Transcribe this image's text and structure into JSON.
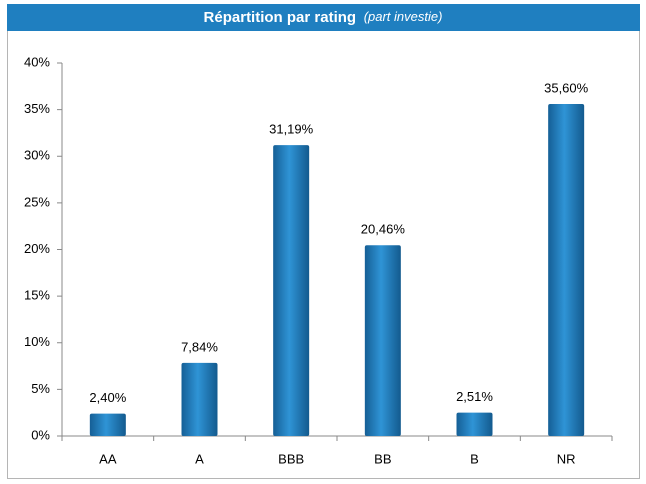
{
  "chart_data": {
    "type": "bar",
    "title": "Répartition par rating",
    "subtitle": "(part investie)",
    "categories": [
      "AA",
      "A",
      "BBB",
      "BB",
      "B",
      "NR"
    ],
    "values": [
      2.4,
      7.84,
      31.19,
      20.46,
      2.51,
      35.6
    ],
    "value_labels": [
      "2,40%",
      "7,84%",
      "31,19%",
      "20,46%",
      "2,51%",
      "35,60%"
    ],
    "color": "#1f7fc0",
    "ylim": [
      0,
      40
    ],
    "yticks": [
      {
        "value": 0,
        "label": "0%"
      },
      {
        "value": 5,
        "label": "5%"
      },
      {
        "value": 10,
        "label": "10%"
      },
      {
        "value": 15,
        "label": "15%"
      },
      {
        "value": 20,
        "label": "20%"
      },
      {
        "value": 25,
        "label": "25%"
      },
      {
        "value": 30,
        "label": "30%"
      },
      {
        "value": 35,
        "label": "35%"
      },
      {
        "value": 40,
        "label": "40%"
      }
    ],
    "grid": false
  }
}
